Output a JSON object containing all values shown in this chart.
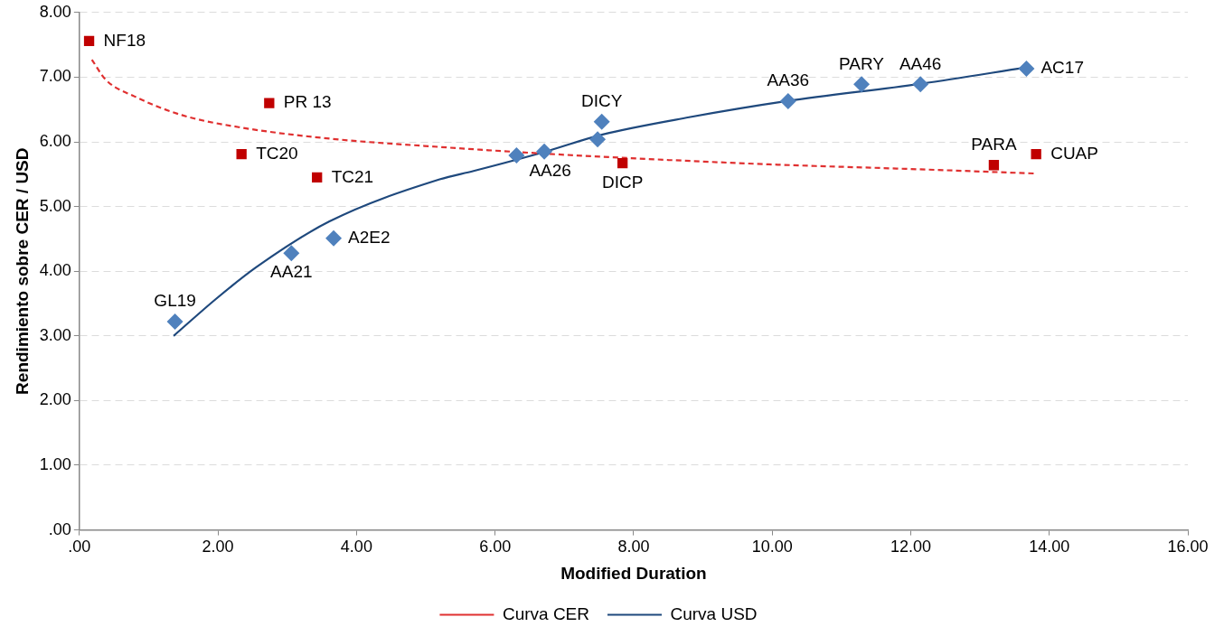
{
  "chart_data": {
    "type": "scatter",
    "xlabel": "Modified Duration",
    "ylabel": "Rendimiento sobre CER / USD",
    "xlim": [
      0,
      16
    ],
    "xticks": [
      {
        "value": 0,
        "label": ".00"
      },
      {
        "value": 2,
        "label": "2.00"
      },
      {
        "value": 4,
        "label": "4.00"
      },
      {
        "value": 6,
        "label": "6.00"
      },
      {
        "value": 8,
        "label": "8.00"
      },
      {
        "value": 10,
        "label": "10.00"
      },
      {
        "value": 12,
        "label": "12.00"
      },
      {
        "value": 14,
        "label": "14.00"
      },
      {
        "value": 16,
        "label": "16.00"
      }
    ],
    "ylim": [
      0,
      8
    ],
    "yticks": [
      {
        "value": 0,
        "label": ".00"
      },
      {
        "value": 1,
        "label": "1.00"
      },
      {
        "value": 2,
        "label": "2.00"
      },
      {
        "value": 3,
        "label": "3.00"
      },
      {
        "value": 4,
        "label": "4.00"
      },
      {
        "value": 5,
        "label": "5.00"
      },
      {
        "value": 6,
        "label": "6.00"
      },
      {
        "value": 7,
        "label": "7.00"
      },
      {
        "value": 8,
        "label": "8.00"
      }
    ],
    "grid": "y",
    "legend": "bottom",
    "series": [
      {
        "color": "#c00000",
        "marker": "square",
        "x": [
          0.14,
          2.74,
          2.34,
          3.43,
          7.84,
          13.2,
          13.81
        ],
        "values": [
          7.56,
          6.6,
          5.81,
          5.45,
          5.67,
          5.64,
          5.81
        ]
      },
      {
        "color": "#4f81bd",
        "marker": "diamond",
        "x": [
          1.38,
          3.06,
          3.67,
          6.31,
          6.71,
          7.48,
          7.54,
          10.23,
          11.29,
          12.14,
          13.67
        ],
        "values": [
          3.22,
          4.28,
          4.51,
          5.79,
          5.85,
          6.04,
          6.31,
          6.63,
          6.89,
          6.89,
          7.13
        ]
      },
      {
        "type": "line",
        "name": "Curva CER",
        "color": "#e03030",
        "line_style": "dashed",
        "marker": "none",
        "x": [
          0.18,
          0.38,
          0.8,
          1.49,
          2.34,
          3.61,
          5.21,
          7,
          8.5,
          10,
          12,
          13.81
        ],
        "values": [
          7.27,
          6.96,
          6.7,
          6.41,
          6.22,
          6.05,
          5.92,
          5.8,
          5.72,
          5.65,
          5.58,
          5.51
        ]
      },
      {
        "type": "line",
        "name": "Curva USD",
        "color": "#1f497d",
        "line_style": "solid",
        "marker": "none",
        "x": [
          1.36,
          1.97,
          2.55,
          3.61,
          5.2,
          5.69,
          6.7,
          7.54,
          8.8,
          10.21,
          12.16,
          13.66
        ],
        "values": [
          3.0,
          3.57,
          4.06,
          4.77,
          5.42,
          5.55,
          5.84,
          6.11,
          6.38,
          6.63,
          6.9,
          7.15
        ]
      }
    ],
    "annotations": [
      {
        "text": "NF18",
        "x": 0.14,
        "y": 7.56
      },
      {
        "text": "PR 13",
        "x": 2.74,
        "y": 6.6
      },
      {
        "text": "TC20",
        "x": 2.34,
        "y": 5.81
      },
      {
        "text": "TC21",
        "x": 3.43,
        "y": 5.45
      },
      {
        "text": "DICP",
        "x": 7.84,
        "y": 5.67
      },
      {
        "text": "PARA",
        "x": 13.2,
        "y": 5.64
      },
      {
        "text": "CUAP",
        "x": 13.81,
        "y": 5.81
      },
      {
        "text": "GL19",
        "x": 1.38,
        "y": 3.22
      },
      {
        "text": "AA21",
        "x": 3.06,
        "y": 4.28
      },
      {
        "text": "A2E2",
        "x": 3.67,
        "y": 4.51
      },
      {
        "text": "AA26",
        "x": 6.31,
        "y": 5.79
      },
      {
        "text": "DICY",
        "x": 7.54,
        "y": 6.31
      },
      {
        "text": "AA36",
        "x": 10.23,
        "y": 6.63
      },
      {
        "text": "PARY",
        "x": 11.29,
        "y": 6.89
      },
      {
        "text": "AA46",
        "x": 12.14,
        "y": 6.89
      },
      {
        "text": "AC17",
        "x": 13.67,
        "y": 7.13
      }
    ]
  }
}
